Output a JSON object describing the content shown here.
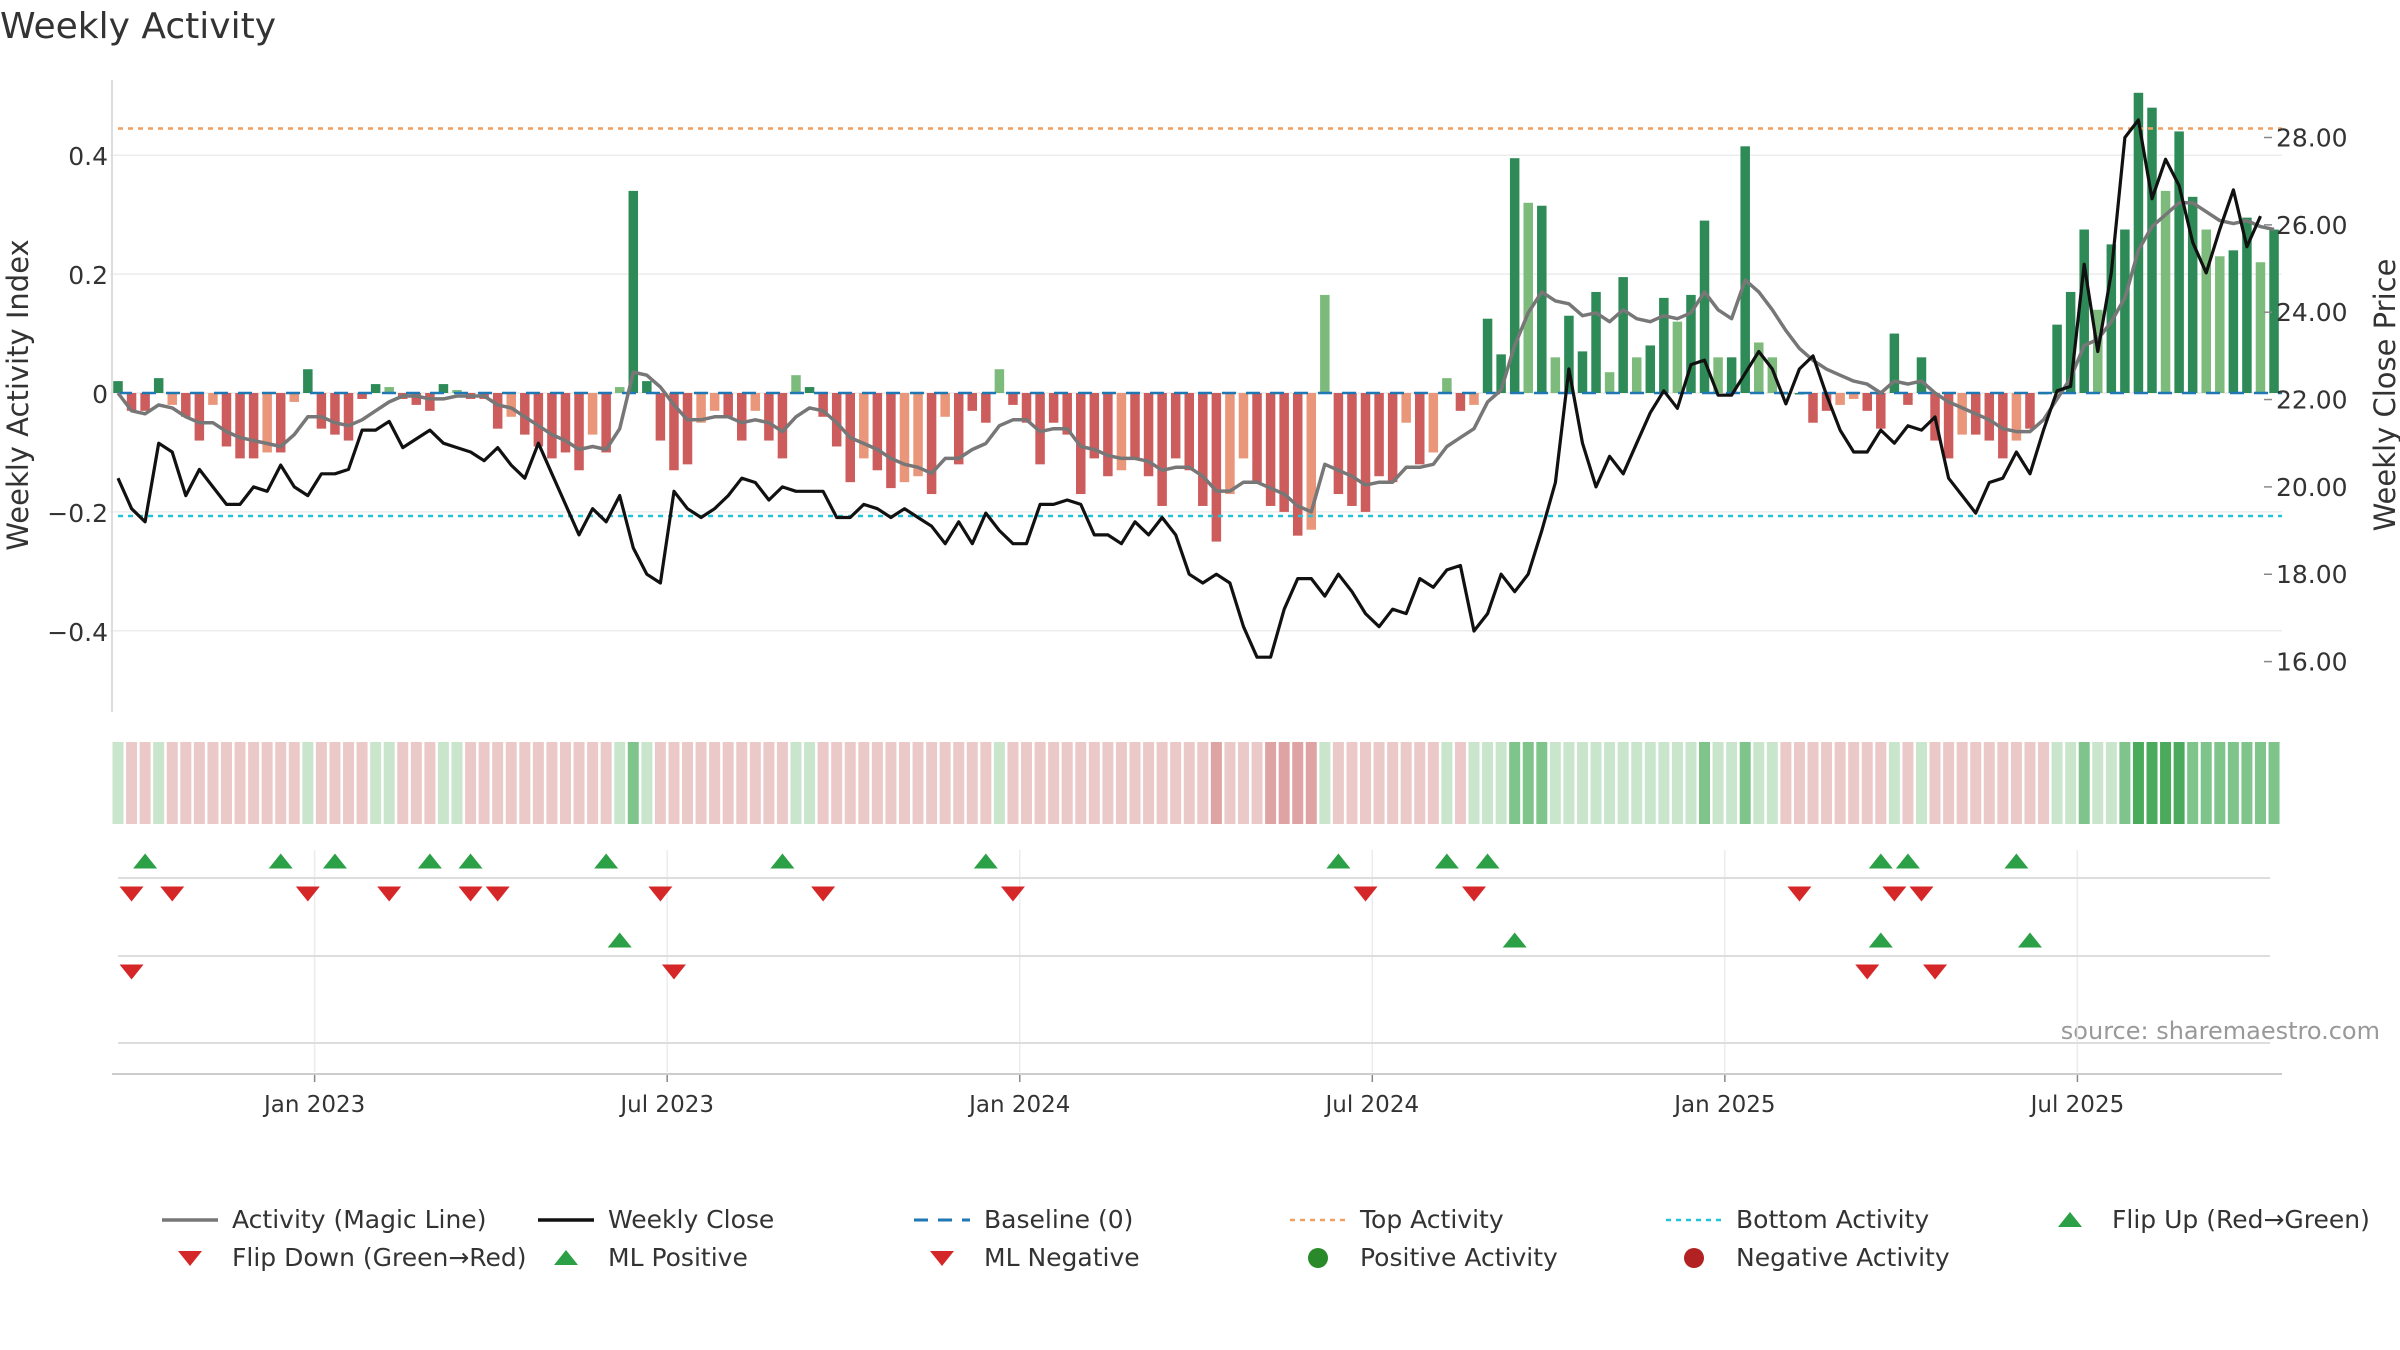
{
  "chart_data": {
    "type": "bar+line",
    "title": "Weekly Activity",
    "ylabel_left": "Weekly Activity Index",
    "ylabel_right": "Weekly Close Price",
    "source": "source: sharemaestro.com",
    "ylim_left": [
      -0.54,
      0.54
    ],
    "ylim_right": [
      14.8,
      29.5
    ],
    "yticks_left": [
      {
        "v": 0.4,
        "label": "0.4"
      },
      {
        "v": 0.2,
        "label": "0.2"
      },
      {
        "v": 0,
        "label": "0"
      },
      {
        "v": -0.2,
        "label": "−0.2"
      },
      {
        "v": -0.4,
        "label": "−0.4"
      }
    ],
    "yticks_right": [
      {
        "v": 28,
        "label": "28.00"
      },
      {
        "v": 26,
        "label": "26.00"
      },
      {
        "v": 24,
        "label": "24.00"
      },
      {
        "v": 22,
        "label": "22.00"
      },
      {
        "v": 20,
        "label": "20.00"
      },
      {
        "v": 18,
        "label": "18.00"
      },
      {
        "v": 16,
        "label": "16.00"
      }
    ],
    "xticks": [
      {
        "week": 14.5,
        "label": "Jan 2023"
      },
      {
        "week": 40.5,
        "label": "Jul 2023"
      },
      {
        "week": 66.5,
        "label": "Jan 2024"
      },
      {
        "week": 92.5,
        "label": "Jul 2024"
      },
      {
        "week": 118.5,
        "label": "Jan 2025"
      },
      {
        "week": 144.5,
        "label": "Jul 2025"
      }
    ],
    "top_activity": 0.445,
    "bottom_activity": -0.207,
    "activity_index": [
      0.02,
      -0.03,
      -0.03,
      0.025,
      -0.02,
      -0.04,
      -0.08,
      -0.02,
      -0.09,
      -0.11,
      -0.11,
      -0.1,
      -0.1,
      -0.015,
      0.04,
      -0.06,
      -0.07,
      -0.08,
      -0.01,
      0.015,
      0.01,
      -0.01,
      -0.02,
      -0.03,
      0.015,
      0.005,
      -0.01,
      -0.01,
      -0.06,
      -0.04,
      -0.07,
      -0.09,
      -0.11,
      -0.1,
      -0.13,
      -0.07,
      -0.1,
      0.01,
      0.34,
      0.02,
      -0.08,
      -0.13,
      -0.12,
      -0.05,
      -0.03,
      -0.04,
      -0.08,
      -0.03,
      -0.08,
      -0.11,
      0.03,
      0.01,
      -0.04,
      -0.09,
      -0.15,
      -0.11,
      -0.13,
      -0.16,
      -0.15,
      -0.14,
      -0.17,
      -0.04,
      -0.12,
      -0.03,
      -0.05,
      0.04,
      -0.02,
      -0.05,
      -0.12,
      -0.05,
      -0.07,
      -0.17,
      -0.11,
      -0.14,
      -0.13,
      -0.11,
      -0.14,
      -0.19,
      -0.11,
      -0.13,
      -0.19,
      -0.25,
      -0.17,
      -0.11,
      -0.15,
      -0.19,
      -0.2,
      -0.24,
      -0.23,
      0.165,
      -0.17,
      -0.19,
      -0.2,
      -0.14,
      -0.15,
      -0.05,
      -0.12,
      -0.1,
      0.025,
      -0.03,
      -0.02,
      0.125,
      0.065,
      0.395,
      0.32,
      0.315,
      0.06,
      0.13,
      0.07,
      0.17,
      0.035,
      0.195,
      0.06,
      0.08,
      0.16,
      0.12,
      0.165,
      0.29,
      0.06,
      0.06,
      0.415,
      0.085,
      0.06,
      0.0,
      0.0,
      -0.05,
      -0.03,
      -0.02,
      -0.01,
      -0.03,
      -0.06,
      0.1,
      -0.02,
      0.06,
      -0.08,
      -0.11,
      -0.07,
      -0.07,
      -0.08,
      -0.11,
      -0.08,
      -0.06,
      0.0,
      0.115,
      0.17,
      0.275,
      0.14,
      0.25,
      0.275,
      0.505,
      0.48,
      0.34,
      0.44,
      0.33,
      0.275,
      0.23,
      0.24,
      0.295,
      0.22,
      0.275
    ],
    "magic_line": [
      0.0,
      -0.03,
      -0.035,
      -0.02,
      -0.025,
      -0.04,
      -0.05,
      -0.05,
      -0.065,
      -0.075,
      -0.08,
      -0.085,
      -0.09,
      -0.07,
      -0.04,
      -0.04,
      -0.05,
      -0.055,
      -0.045,
      -0.03,
      -0.015,
      -0.005,
      -0.005,
      -0.01,
      -0.01,
      -0.005,
      -0.005,
      -0.005,
      -0.02,
      -0.025,
      -0.04,
      -0.055,
      -0.07,
      -0.08,
      -0.095,
      -0.09,
      -0.095,
      -0.06,
      0.035,
      0.03,
      0.01,
      -0.02,
      -0.045,
      -0.045,
      -0.04,
      -0.04,
      -0.05,
      -0.045,
      -0.05,
      -0.065,
      -0.04,
      -0.025,
      -0.03,
      -0.05,
      -0.075,
      -0.085,
      -0.095,
      -0.11,
      -0.12,
      -0.125,
      -0.135,
      -0.11,
      -0.11,
      -0.095,
      -0.085,
      -0.055,
      -0.045,
      -0.045,
      -0.065,
      -0.06,
      -0.06,
      -0.09,
      -0.095,
      -0.105,
      -0.11,
      -0.11,
      -0.115,
      -0.13,
      -0.125,
      -0.125,
      -0.14,
      -0.165,
      -0.165,
      -0.15,
      -0.15,
      -0.16,
      -0.17,
      -0.19,
      -0.2,
      -0.12,
      -0.13,
      -0.14,
      -0.155,
      -0.15,
      -0.15,
      -0.125,
      -0.125,
      -0.12,
      -0.09,
      -0.075,
      -0.06,
      -0.015,
      0.005,
      0.08,
      0.135,
      0.17,
      0.155,
      0.15,
      0.13,
      0.135,
      0.12,
      0.14,
      0.125,
      0.12,
      0.13,
      0.125,
      0.135,
      0.17,
      0.14,
      0.125,
      0.19,
      0.17,
      0.14,
      0.105,
      0.075,
      0.055,
      0.04,
      0.03,
      0.02,
      0.015,
      0.0,
      0.02,
      0.015,
      0.02,
      0.0,
      -0.015,
      -0.025,
      -0.035,
      -0.045,
      -0.06,
      -0.065,
      -0.065,
      -0.045,
      -0.01,
      0.025,
      0.08,
      0.09,
      0.12,
      0.16,
      0.24,
      0.28,
      0.3,
      0.32,
      0.32,
      0.305,
      0.29,
      0.285,
      0.29,
      0.28,
      0.275
    ],
    "weekly_close": [
      20.2,
      19.5,
      19.2,
      21.0,
      20.8,
      19.8,
      20.4,
      20.0,
      19.6,
      19.6,
      20.0,
      19.9,
      20.5,
      20.0,
      19.8,
      20.3,
      20.3,
      20.4,
      21.3,
      21.3,
      21.5,
      20.9,
      21.1,
      21.3,
      21.0,
      20.9,
      20.8,
      20.6,
      20.9,
      20.5,
      20.2,
      21.0,
      20.3,
      19.6,
      18.9,
      19.5,
      19.2,
      19.8,
      18.6,
      18.0,
      17.8,
      19.9,
      19.5,
      19.3,
      19.5,
      19.8,
      20.2,
      20.1,
      19.7,
      20.0,
      19.9,
      19.9,
      19.9,
      19.3,
      19.3,
      19.6,
      19.5,
      19.3,
      19.5,
      19.3,
      19.1,
      18.7,
      19.2,
      18.7,
      19.4,
      19.0,
      18.7,
      18.7,
      19.6,
      19.6,
      19.7,
      19.6,
      18.9,
      18.9,
      18.7,
      19.2,
      18.9,
      19.3,
      18.9,
      18.0,
      17.8,
      18.0,
      17.8,
      16.8,
      16.1,
      16.1,
      17.2,
      17.9,
      17.9,
      17.5,
      18.0,
      17.6,
      17.1,
      16.8,
      17.2,
      17.1,
      17.9,
      17.7,
      18.1,
      18.2,
      16.7,
      17.1,
      18.0,
      17.6,
      18.0,
      19.0,
      20.1,
      22.7,
      21.0,
      20.0,
      20.7,
      20.3,
      21.0,
      21.7,
      22.2,
      21.8,
      22.8,
      22.9,
      22.1,
      22.1,
      22.6,
      23.1,
      22.7,
      21.9,
      22.7,
      23.0,
      22.1,
      21.3,
      20.8,
      20.8,
      21.3,
      21.0,
      21.4,
      21.3,
      21.6,
      20.2,
      19.8,
      19.4,
      20.1,
      20.2,
      20.8,
      20.3,
      21.3,
      22.2,
      22.3,
      25.1,
      23.1,
      24.9,
      28.0,
      28.4,
      26.6,
      27.5,
      26.9,
      25.6,
      24.9,
      25.9,
      26.8,
      25.5,
      26.2
    ],
    "heat_strip": [
      1,
      -1,
      -1,
      1,
      -1,
      -1,
      -1,
      -1,
      -1,
      -1,
      -1,
      -1,
      -1,
      -1,
      1,
      -1,
      -1,
      -1,
      -1,
      1,
      1,
      -1,
      -1,
      -1,
      1,
      1,
      -1,
      -1,
      -1,
      -1,
      -1,
      -1,
      -1,
      -1,
      -1,
      -1,
      -1,
      1,
      2,
      1,
      -1,
      -1,
      -1,
      -1,
      -1,
      -1,
      -1,
      -1,
      -1,
      -1,
      1,
      1,
      -1,
      -1,
      -1,
      -1,
      -1,
      -1,
      -1,
      -1,
      -1,
      -1,
      -1,
      -1,
      -1,
      1,
      -1,
      -1,
      -1,
      -1,
      -1,
      -1,
      -1,
      -1,
      -1,
      -1,
      -1,
      -1,
      -1,
      -1,
      -1,
      -2,
      -1,
      -1,
      -1,
      -2,
      -2,
      -2,
      -2,
      1,
      -1,
      -1,
      -1,
      -1,
      -1,
      -1,
      -1,
      -1,
      1,
      -1,
      1,
      1,
      1,
      2,
      2,
      2,
      1,
      1,
      1,
      1,
      1,
      1,
      1,
      1,
      1,
      1,
      1,
      2,
      1,
      1,
      2,
      1,
      1,
      -1,
      -1,
      -1,
      -1,
      -1,
      -1,
      -1,
      -1,
      1,
      -1,
      1,
      -1,
      -1,
      -1,
      -1,
      -1,
      -1,
      -1,
      -1,
      -1,
      1,
      1,
      2,
      1,
      1,
      2,
      3,
      3,
      3,
      3,
      2,
      2,
      2,
      2,
      2,
      2,
      2
    ],
    "flip_up": [
      2,
      12,
      16,
      23,
      26,
      36,
      49,
      64,
      90,
      98,
      101,
      130,
      132,
      140
    ],
    "flip_down": [
      1,
      4,
      14,
      20,
      26,
      28,
      40,
      52,
      66,
      92,
      100,
      124,
      131,
      133
    ],
    "ml_positive": [
      37,
      103,
      130,
      141
    ],
    "ml_negative": [
      1,
      41,
      129,
      134
    ],
    "legend": [
      {
        "label": "Activity (Magic Line)",
        "marker": "line",
        "color": "#777777"
      },
      {
        "label": "Weekly Close",
        "marker": "line",
        "color": "#111111"
      },
      {
        "label": "Baseline (0)",
        "marker": "dash",
        "color": "#1f77b4"
      },
      {
        "label": "Top Activity",
        "marker": "dot-line",
        "color": "#f0a060"
      },
      {
        "label": "Bottom Activity",
        "marker": "dot-line",
        "color": "#22c4d8"
      },
      {
        "label": "Flip Up (Red→Green)",
        "marker": "tri-up",
        "color": "#2ca046"
      },
      {
        "label": "Flip Down (Green→Red)",
        "marker": "tri-down",
        "color": "#d62728"
      },
      {
        "label": "ML Positive",
        "marker": "tri-up",
        "color": "#2ca046"
      },
      {
        "label": "ML Negative",
        "marker": "tri-down",
        "color": "#d62728"
      },
      {
        "label": "Positive Activity",
        "marker": "circle",
        "color": "#2a8a2a"
      },
      {
        "label": "Negative Activity",
        "marker": "circle",
        "color": "#b22222"
      }
    ]
  },
  "colors": {
    "bar_pos_strong": "#2e8b57",
    "bar_pos_light": "#7dbb7d",
    "bar_neg_strong": "#cd5c5c",
    "bar_neg_light": "#e9967a",
    "strip_pos": [
      "#c9e6cc",
      "#7fc48a",
      "#4caa5c"
    ],
    "strip_neg": [
      "#ecc9c9",
      "#dea3a3"
    ],
    "grid": "#ececec",
    "baseline": "#1f77b4"
  }
}
